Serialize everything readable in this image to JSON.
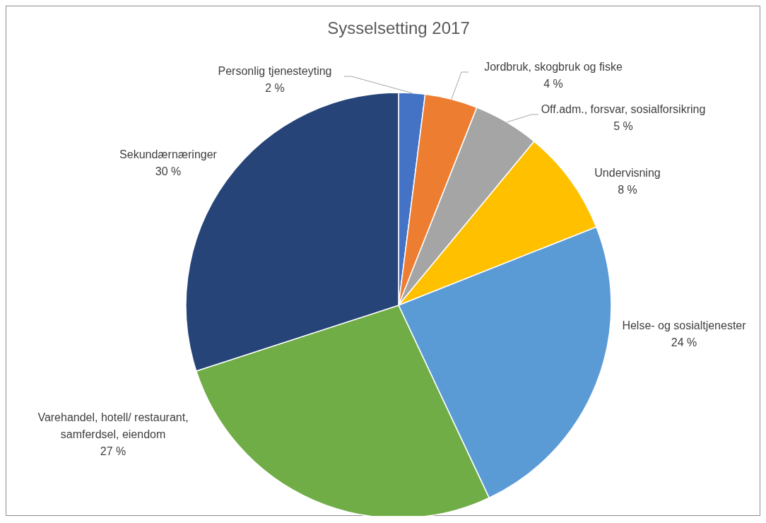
{
  "chart_data": {
    "type": "pie",
    "title": "Sysselsetting 2017",
    "categories": [
      "Personlig tjenesteyting",
      "Jordbruk, skogbruk og fiske",
      "Off.adm., forsvar, sosialforsikring",
      "Undervisning",
      "Helse- og sosialtjenester",
      "Varehandel, hotell/ restaurant, samferdsel, eiendom",
      "Sekundærnæringer"
    ],
    "values": [
      2,
      4,
      5,
      8,
      24,
      27,
      30
    ],
    "value_labels": [
      "2 %",
      "4 %",
      "5 %",
      "8 %",
      "24 %",
      "27 %",
      "30 %"
    ],
    "colors": [
      "#4472c4",
      "#ed7d31",
      "#a5a5a5",
      "#ffc000",
      "#5b9bd5",
      "#70ad47",
      "#264478"
    ]
  }
}
